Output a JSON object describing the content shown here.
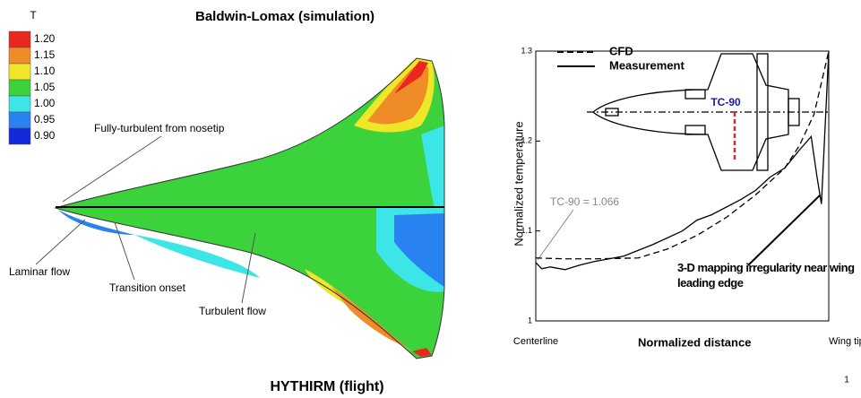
{
  "chart_data": [
    {
      "type": "contour",
      "title": "Baldwin-Lomax (simulation)",
      "subtitle": "HYTHIRM (flight)",
      "colorbar_title": "T",
      "levels": [
        {
          "value": 1.2,
          "label": "1.20"
        },
        1.15,
        {
          "value": 1.1,
          "label": "1.10"
        },
        1.05,
        {
          "value": 1.0,
          "label": "1.00"
        },
        0.95,
        {
          "value": 0.9,
          "label": "0.90"
        }
      ],
      "colors": [
        "#e8281e",
        "#f08c28",
        "#f0e628",
        "#3cd23c",
        "#3ce6e6",
        "#2882f0",
        "#1428dc"
      ],
      "annotations": [
        "Fully-turbulent from nosetip",
        "Laminar flow",
        "Transition onset",
        "Turbulent flow"
      ]
    },
    {
      "type": "line",
      "ylabel": "Normalized temperature",
      "xlabel": "Normalized distance",
      "xlim": [
        0,
        1
      ],
      "xticks": [
        {
          "value": 0,
          "label": "Centerline"
        },
        {
          "value": 1,
          "label": "Wing tip"
        }
      ],
      "ylim": [
        1,
        1.3
      ],
      "yticks": [
        1,
        1.1,
        1.2,
        1.3
      ],
      "series": [
        {
          "name": "CFD",
          "color": "#000000",
          "dash": true,
          "x": [
            0,
            0.1,
            0.2,
            0.35,
            0.45,
            0.55,
            0.65,
            0.75,
            0.85,
            0.9,
            0.95,
            1.0
          ],
          "values": [
            1.07,
            1.069,
            1.069,
            1.07,
            1.08,
            1.095,
            1.115,
            1.14,
            1.17,
            1.195,
            1.23,
            1.3
          ]
        },
        {
          "name": "Measurement",
          "color": "#000000",
          "dash": false,
          "x": [
            0,
            0.02,
            0.05,
            0.1,
            0.15,
            0.2,
            0.3,
            0.4,
            0.5,
            0.55,
            0.6,
            0.7,
            0.75,
            0.8,
            0.85,
            0.9,
            0.94,
            0.96,
            0.975,
            1.0
          ],
          "values": [
            1.065,
            1.058,
            1.06,
            1.057,
            1.062,
            1.066,
            1.072,
            1.085,
            1.1,
            1.112,
            1.118,
            1.135,
            1.145,
            1.16,
            1.17,
            1.19,
            1.205,
            1.16,
            1.13,
            1.3
          ]
        }
      ],
      "annotations": [
        "TC-90 = 1.066",
        "TC-90",
        "3-D mapping irregularity near wing leading edge"
      ]
    }
  ],
  "page_number": "1"
}
